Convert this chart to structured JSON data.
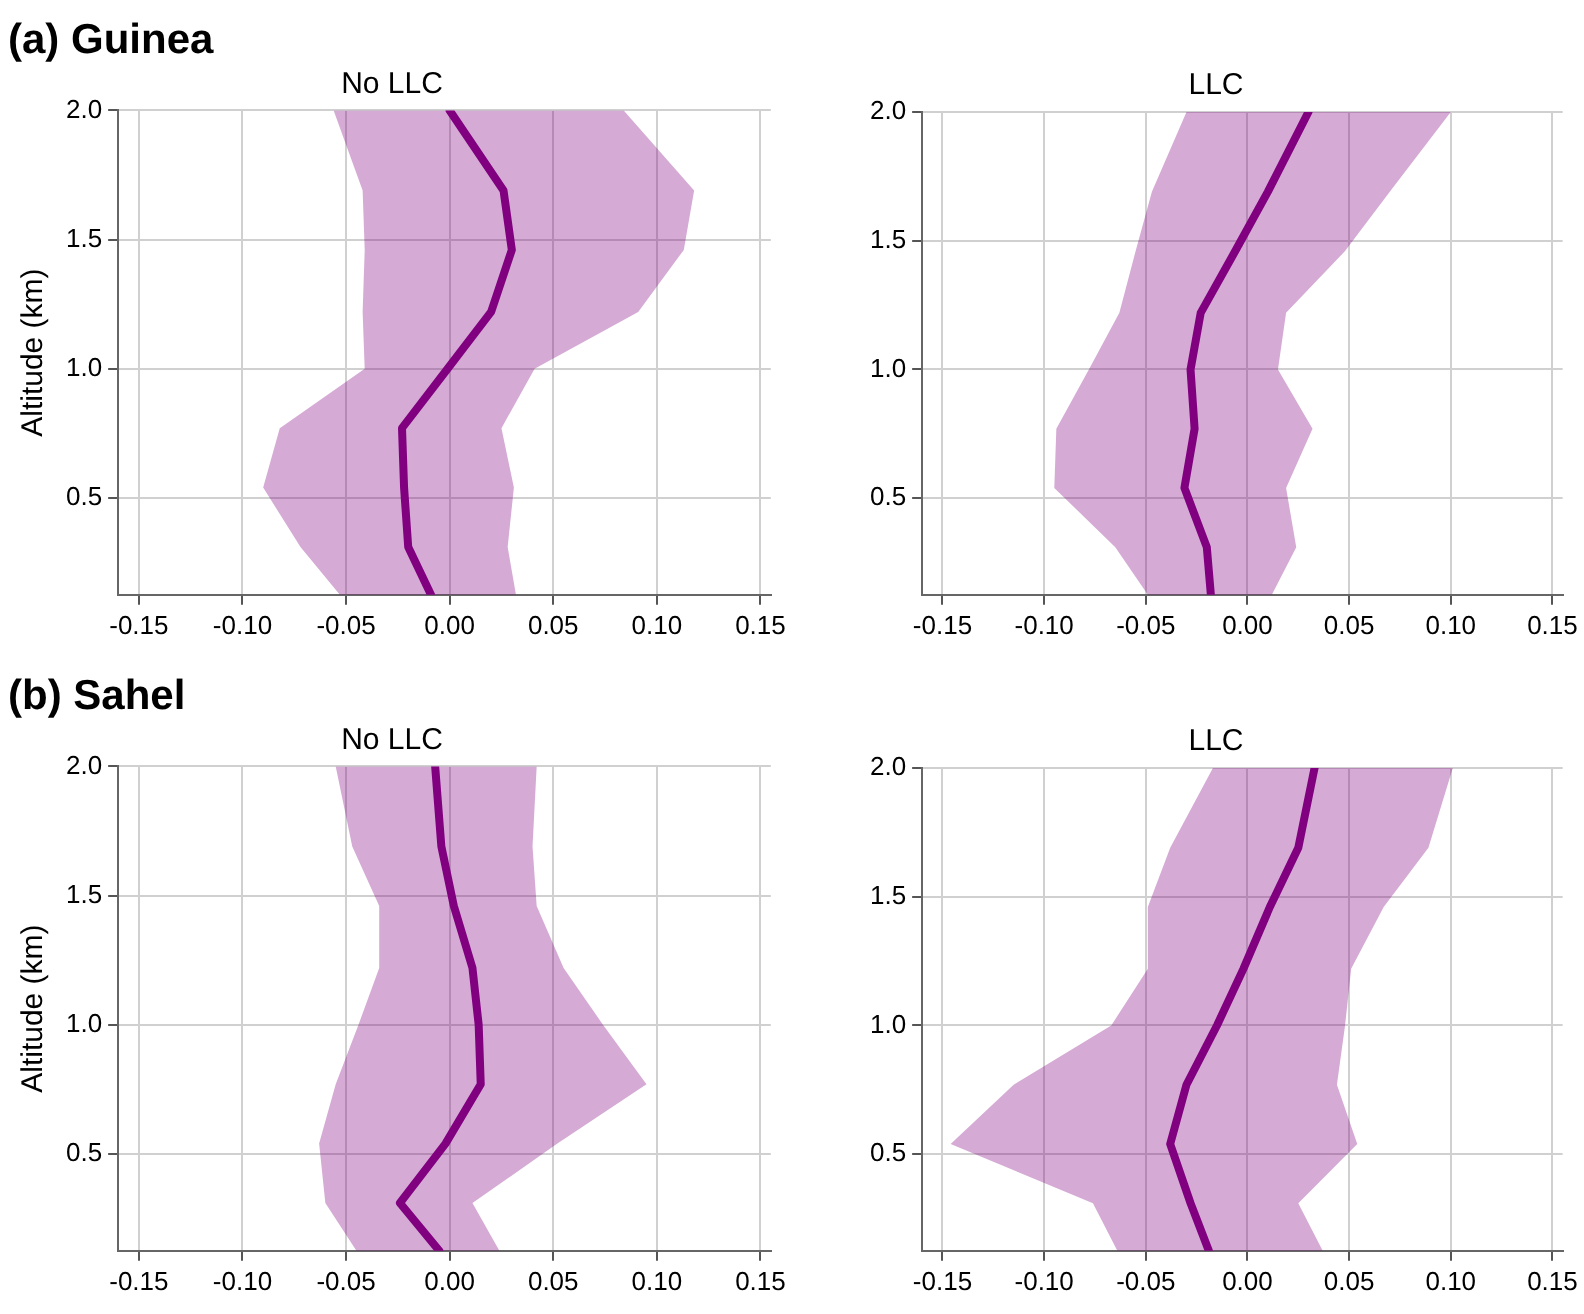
{
  "chart_data": [
    {
      "type": "line",
      "title": "(a) Guinea",
      "subtitle": "No LLC",
      "ylabel": "Altitude (km)",
      "orientation": "horizontal",
      "x": [
        0.125,
        0.31,
        0.54,
        0.77,
        1.0,
        1.22,
        1.46,
        1.69,
        2.0
      ],
      "series": [
        {
          "color": "#800080",
          "values": [
            -0.009,
            -0.02,
            -0.022,
            -0.023,
            -0.001,
            0.02,
            0.03,
            0.026,
            0.0
          ],
          "lower": [
            -0.053,
            -0.072,
            -0.09,
            -0.082,
            -0.041,
            -0.042,
            -0.041,
            -0.042,
            -0.056
          ],
          "upper": [
            0.032,
            0.028,
            0.031,
            0.025,
            0.041,
            0.091,
            0.113,
            0.118,
            0.084
          ]
        }
      ],
      "xlim": [
        -0.16,
        0.155
      ],
      "ylim": [
        0.125,
        2.0
      ],
      "xticks": [
        {
          "value": -0.15,
          "label": "-0.15"
        },
        {
          "value": -0.1,
          "label": "-0.10"
        },
        {
          "value": -0.05,
          "label": "-0.05"
        },
        {
          "value": 0,
          "label": "0.00"
        },
        {
          "value": 0.05,
          "label": "0.05"
        },
        {
          "value": 0.1,
          "label": "0.10"
        },
        {
          "value": 0.15,
          "label": "0.15"
        }
      ],
      "yticks": [
        {
          "value": 0.5,
          "label": "0.5"
        },
        {
          "value": 1,
          "label": "1.0"
        },
        {
          "value": 1.5,
          "label": "1.5"
        },
        {
          "value": 2,
          "label": "2.0"
        }
      ],
      "grid": true,
      "legend": false,
      "marker": "none",
      "line_style": "solid"
    },
    {
      "type": "line",
      "subtitle": "LLC",
      "orientation": "horizontal",
      "x": [
        0.125,
        0.31,
        0.54,
        0.77,
        1.0,
        1.22,
        1.46,
        1.69,
        2.0
      ],
      "series": [
        {
          "color": "#800080",
          "values": [
            -0.018,
            -0.02,
            -0.031,
            -0.026,
            -0.028,
            -0.023,
            -0.006,
            0.01,
            0.03
          ],
          "lower": [
            -0.049,
            -0.065,
            -0.095,
            -0.094,
            -0.078,
            -0.063,
            -0.055,
            -0.047,
            -0.03
          ],
          "upper": [
            0.012,
            0.024,
            0.019,
            0.032,
            0.015,
            0.019,
            0.048,
            0.07,
            0.1
          ]
        }
      ],
      "xlim": [
        -0.16,
        0.155
      ],
      "ylim": [
        0.125,
        2.0
      ],
      "xticks": [
        {
          "value": -0.15,
          "label": "-0.15"
        },
        {
          "value": -0.1,
          "label": "-0.10"
        },
        {
          "value": -0.05,
          "label": "-0.05"
        },
        {
          "value": 0,
          "label": "0.00"
        },
        {
          "value": 0.05,
          "label": "0.05"
        },
        {
          "value": 0.1,
          "label": "0.10"
        },
        {
          "value": 0.15,
          "label": "0.15"
        }
      ],
      "yticks": [
        {
          "value": 0.5,
          "label": "0.5"
        },
        {
          "value": 1,
          "label": "1.0"
        },
        {
          "value": 1.5,
          "label": "1.5"
        },
        {
          "value": 2,
          "label": "2.0"
        }
      ],
      "grid": true,
      "legend": false,
      "marker": "none",
      "line_style": "solid"
    },
    {
      "type": "line",
      "title": "(b) Sahel",
      "subtitle": "No LLC",
      "ylabel": "Altitude (km)",
      "orientation": "horizontal",
      "x": [
        0.125,
        0.31,
        0.54,
        0.77,
        1.0,
        1.22,
        1.46,
        1.69,
        2.0
      ],
      "series": [
        {
          "color": "#800080",
          "values": [
            -0.005,
            -0.024,
            -0.002,
            0.015,
            0.014,
            0.011,
            0.002,
            -0.004,
            -0.007
          ],
          "lower": [
            -0.045,
            -0.06,
            -0.063,
            -0.055,
            -0.044,
            -0.034,
            -0.034,
            -0.047,
            -0.055
          ],
          "upper": [
            0.024,
            0.011,
            0.052,
            0.095,
            0.074,
            0.055,
            0.042,
            0.04,
            0.042
          ]
        }
      ],
      "xlim": [
        -0.16,
        0.155
      ],
      "ylim": [
        0.125,
        2.0
      ],
      "xticks": [
        {
          "value": -0.15,
          "label": "-0.15"
        },
        {
          "value": -0.1,
          "label": "-0.10"
        },
        {
          "value": -0.05,
          "label": "-0.05"
        },
        {
          "value": 0,
          "label": "0.00"
        },
        {
          "value": 0.05,
          "label": "0.05"
        },
        {
          "value": 0.1,
          "label": "0.10"
        },
        {
          "value": 0.15,
          "label": "0.15"
        }
      ],
      "yticks": [
        {
          "value": 0.5,
          "label": "0.5"
        },
        {
          "value": 1,
          "label": "1.0"
        },
        {
          "value": 1.5,
          "label": "1.5"
        },
        {
          "value": 2,
          "label": "2.0"
        }
      ],
      "grid": true,
      "legend": false,
      "marker": "none",
      "line_style": "solid"
    },
    {
      "type": "line",
      "subtitle": "LLC",
      "orientation": "horizontal",
      "x": [
        0.125,
        0.31,
        0.54,
        0.77,
        1.0,
        1.22,
        1.46,
        1.69,
        2.0
      ],
      "series": [
        {
          "color": "#800080",
          "values": [
            -0.019,
            -0.028,
            -0.038,
            -0.03,
            -0.015,
            -0.002,
            0.011,
            0.025,
            0.033
          ],
          "lower": [
            -0.064,
            -0.076,
            -0.146,
            -0.115,
            -0.067,
            -0.049,
            -0.049,
            -0.038,
            -0.017
          ],
          "upper": [
            0.037,
            0.025,
            0.054,
            0.044,
            0.048,
            0.051,
            0.067,
            0.089,
            0.101
          ]
        }
      ],
      "xlim": [
        -0.16,
        0.155
      ],
      "ylim": [
        0.125,
        2.0
      ],
      "xticks": [
        {
          "value": -0.15,
          "label": "-0.15"
        },
        {
          "value": -0.1,
          "label": "-0.10"
        },
        {
          "value": -0.05,
          "label": "-0.05"
        },
        {
          "value": 0,
          "label": "0.00"
        },
        {
          "value": 0.05,
          "label": "0.05"
        },
        {
          "value": 0.1,
          "label": "0.10"
        },
        {
          "value": 0.15,
          "label": "0.15"
        }
      ],
      "yticks": [
        {
          "value": 0.5,
          "label": "0.5"
        },
        {
          "value": 1,
          "label": "1.0"
        },
        {
          "value": 1.5,
          "label": "1.5"
        },
        {
          "value": 2,
          "label": "2.0"
        }
      ],
      "grid": true,
      "legend": false,
      "marker": "none",
      "line_style": "solid"
    }
  ]
}
